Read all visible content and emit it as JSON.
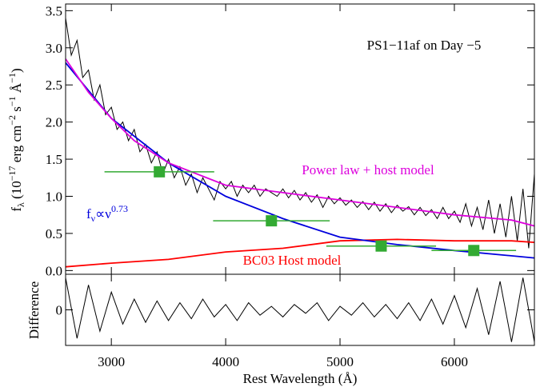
{
  "chart_data": [
    {
      "type": "line",
      "annotations": {
        "title": "PS1−11af on Day −5",
        "powerlaw_label": [
          "f",
          "ν",
          "∝ν",
          "0.73"
        ]
      },
      "ylabel": [
        "f",
        "λ",
        " (10",
        "−17",
        " erg cm",
        "−2",
        " s",
        "−1",
        " Å",
        "−1",
        ")"
      ],
      "xlim": [
        2600,
        6700
      ],
      "xticks": [
        3000,
        4000,
        5000,
        6000
      ],
      "ylim": [
        -0.05,
        3.59
      ],
      "yticks": [
        {
          "value": 0,
          "label": "0.0"
        },
        0.5,
        {
          "value": 1,
          "label": "1.0"
        },
        1.5,
        {
          "value": 2,
          "label": "2.0"
        },
        2.5,
        {
          "value": 3,
          "label": "3.0"
        },
        3.5
      ],
      "series": [
        {
          "color": "#000000",
          "x": [
            2600,
            2650,
            2700,
            2750,
            2800,
            2850,
            2900,
            2950,
            3000,
            3050,
            3100,
            3150,
            3200,
            3250,
            3300,
            3350,
            3400,
            3450,
            3500,
            3550,
            3600,
            3650,
            3700,
            3750,
            3800,
            3850,
            3900,
            3950,
            4000,
            4050,
            4100,
            4150,
            4200,
            4250,
            4300,
            4350,
            4400,
            4450,
            4500,
            4550,
            4600,
            4650,
            4700,
            4750,
            4800,
            4850,
            4900,
            4950,
            5000,
            5050,
            5100,
            5150,
            5200,
            5250,
            5300,
            5350,
            5400,
            5450,
            5500,
            5550,
            5600,
            5650,
            5700,
            5750,
            5800,
            5850,
            5900,
            5950,
            6000,
            6050,
            6100,
            6150,
            6200,
            6250,
            6300,
            6350,
            6400,
            6450,
            6500,
            6550,
            6600,
            6650,
            6700
          ],
          "values": [
            3.4,
            2.9,
            3.1,
            2.6,
            2.7,
            2.3,
            2.5,
            2.1,
            2.2,
            1.9,
            2.0,
            1.75,
            1.9,
            1.6,
            1.7,
            1.45,
            1.6,
            1.3,
            1.5,
            1.25,
            1.4,
            1.15,
            1.3,
            1.05,
            1.25,
            1.1,
            0.95,
            1.2,
            1.1,
            1.2,
            1.0,
            1.15,
            1.05,
            1.15,
            1.0,
            1.1,
            1.05,
            1.0,
            1.1,
            0.98,
            1.08,
            0.95,
            1.05,
            0.92,
            1.02,
            0.85,
            1.0,
            0.9,
            0.98,
            0.88,
            0.95,
            0.85,
            0.93,
            0.82,
            0.92,
            0.8,
            0.9,
            0.78,
            0.88,
            0.8,
            0.86,
            0.75,
            0.85,
            0.74,
            0.82,
            0.7,
            0.85,
            0.7,
            0.8,
            0.65,
            0.9,
            0.6,
            0.85,
            0.55,
            0.95,
            0.5,
            0.9,
            0.45,
            1.0,
            0.4,
            1.1,
            0.3,
            1.3
          ]
        },
        {
          "color": "#ff0000",
          "name": "BC03 Host model",
          "x": [
            2600,
            3000,
            3500,
            4000,
            4500,
            5000,
            5500,
            6000,
            6500,
            6700
          ],
          "values": [
            0.05,
            0.1,
            0.15,
            0.25,
            0.3,
            0.4,
            0.42,
            0.4,
            0.4,
            0.38
          ]
        },
        {
          "color": "#0000dd",
          "x": [
            2600,
            3000,
            3500,
            4000,
            4500,
            5000,
            5500,
            6000,
            6700
          ],
          "values": [
            2.8,
            2.05,
            1.45,
            1.0,
            0.7,
            0.45,
            0.35,
            0.27,
            0.17
          ]
        },
        {
          "color": "#dd00dd",
          "name": "Power law + host model",
          "x": [
            2600,
            2800,
            3000,
            3200,
            3500,
            4000,
            4500,
            5000,
            5500,
            6000,
            6500,
            6700
          ],
          "values": [
            2.85,
            2.4,
            2.05,
            1.75,
            1.45,
            1.15,
            1.05,
            0.95,
            0.85,
            0.75,
            0.68,
            0.6
          ]
        },
        {
          "color": "#33aa33",
          "marker": "square",
          "x": [
            3420,
            4400,
            5360,
            6170
          ],
          "xerr": [
            480,
            510,
            480,
            370
          ],
          "values": [
            1.33,
            0.67,
            0.33,
            0.27
          ]
        }
      ]
    },
    {
      "type": "line",
      "ylabel": "Difference",
      "xlabel": "Rest Wavelength (Å)",
      "xlim": [
        2600,
        6700
      ],
      "xticks": [
        3000,
        4000,
        5000,
        6000
      ],
      "ylim": [
        -1,
        1
      ],
      "yticks": [
        0
      ],
      "series": [
        {
          "color": "#000000",
          "x": [
            2600,
            2700,
            2800,
            2900,
            3000,
            3100,
            3200,
            3300,
            3400,
            3500,
            3600,
            3700,
            3800,
            3900,
            4000,
            4100,
            4200,
            4300,
            4400,
            4500,
            4600,
            4700,
            4800,
            4900,
            5000,
            5100,
            5200,
            5300,
            5400,
            5500,
            5600,
            5700,
            5800,
            5900,
            6000,
            6100,
            6200,
            6300,
            6400,
            6500,
            6600,
            6700
          ],
          "values": [
            0.9,
            -0.8,
            0.7,
            -0.6,
            0.5,
            -0.4,
            0.3,
            -0.35,
            0.25,
            -0.3,
            0.2,
            -0.25,
            0.3,
            -0.2,
            0.15,
            -0.3,
            0.2,
            -0.15,
            0.1,
            -0.2,
            0.15,
            -0.1,
            0.2,
            -0.3,
            0.1,
            -0.15,
            0.2,
            -0.2,
            0.15,
            -0.25,
            0.2,
            -0.3,
            0.3,
            -0.4,
            0.4,
            -0.5,
            0.6,
            -0.7,
            0.8,
            -0.9,
            0.9,
            -0.9
          ]
        }
      ]
    }
  ]
}
